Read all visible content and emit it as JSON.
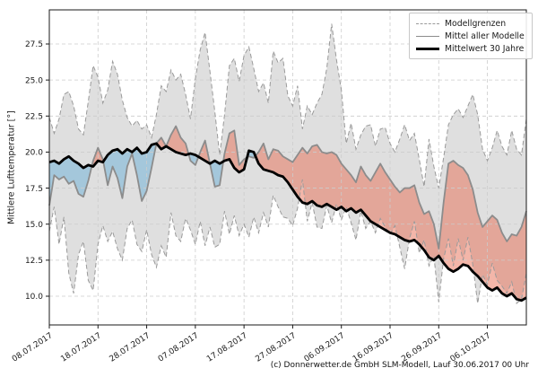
{
  "caption": "(c) Donnerwetter.de GmbH SLM-Modell, Lauf 30.06.2017 00 Uhr",
  "axes": {
    "ylabel": "Mittlere Lufttemperatur [°]",
    "ytick_values": [
      10.0,
      12.5,
      15.0,
      17.5,
      20.0,
      22.5,
      25.0,
      27.5
    ],
    "ytick_labels": [
      "10.0",
      "12.5",
      "15.0",
      "17.5",
      "20.0",
      "22.5",
      "25.0",
      "27.5"
    ],
    "xtick_days": [
      0,
      10,
      20,
      30,
      40,
      50,
      60,
      70,
      80,
      90
    ],
    "xtick_labels": [
      "08.07.2017",
      "18.07.2017",
      "28.07.2017",
      "07.08.2017",
      "17.08.2017",
      "27.08.2017",
      "06.09.2017",
      "16.09.2017",
      "26.09.2017",
      "06.10.2017"
    ]
  },
  "legend": {
    "items": [
      {
        "label": "Modellgrenzen",
        "style": "dashed"
      },
      {
        "label": "Mittel aller Modelle",
        "style": "solid"
      },
      {
        "label": "Mittelwert 30 Jahre",
        "style": "thick"
      }
    ]
  },
  "colors": {
    "band_fill": "#dfdfdf",
    "band_edge": "#9a9a9a",
    "warm_fill": "rgba(231,110,84,0.5)",
    "cool_fill": "rgba(128,184,216,0.62)",
    "mean_line": "#8c8c8c",
    "climate_line": "#000000",
    "grid": "#cccccc",
    "frame": "#1a1a1a",
    "tick_text": "#1a1a1a"
  },
  "chart_data": {
    "type": "line",
    "title": "",
    "xlabel": "",
    "ylabel": "Mittlere Lufttemperatur [°]",
    "ylim": [
      8.0,
      29.9
    ],
    "grid": true,
    "legend_position": "upper right",
    "start_date": "08.07.2017",
    "end_date": "14.10.2017",
    "days": 99,
    "series": [
      {
        "name": "Modellgrenzen (obere Grenze)",
        "style": "dashed-gray",
        "values": [
          22.4,
          21.3,
          22.3,
          24.0,
          24.2,
          23.2,
          21.6,
          21.2,
          23.5,
          26.0,
          25.2,
          23.4,
          24.3,
          26.3,
          25.4,
          23.6,
          22.4,
          21.8,
          22.2,
          21.6,
          21.9,
          21.0,
          22.6,
          24.6,
          24.2,
          25.7,
          25.0,
          25.4,
          24.0,
          22.3,
          25.1,
          27.1,
          28.3,
          25.6,
          22.8,
          19.8,
          22.6,
          26.0,
          26.5,
          24.9,
          26.7,
          27.3,
          25.8,
          24.2,
          24.8,
          23.4,
          27.0,
          26.2,
          26.5,
          23.9,
          23.2,
          24.6,
          21.6,
          23.2,
          22.6,
          23.4,
          24.0,
          25.8,
          28.9,
          26.4,
          24.3,
          20.6,
          22.0,
          20.2,
          21.2,
          21.8,
          21.9,
          20.4,
          21.6,
          21.7,
          20.6,
          20.0,
          20.9,
          21.9,
          20.8,
          21.3,
          19.5,
          17.6,
          20.9,
          19.0,
          17.5,
          19.6,
          21.9,
          22.6,
          23.0,
          22.4,
          23.2,
          24.0,
          22.6,
          20.2,
          19.4,
          20.3,
          21.5,
          20.4,
          19.8,
          21.5,
          20.2,
          19.8,
          22.3
        ]
      },
      {
        "name": "Modellgrenzen (untere Grenze)",
        "style": "dashed-gray",
        "values": [
          14.5,
          16.2,
          13.6,
          15.5,
          11.6,
          10.2,
          12.9,
          13.8,
          11.1,
          10.4,
          13.6,
          14.9,
          13.8,
          14.5,
          13.3,
          12.5,
          14.7,
          15.3,
          13.6,
          13.1,
          14.6,
          12.9,
          12.0,
          13.5,
          12.7,
          15.8,
          14.2,
          13.8,
          15.4,
          14.6,
          13.6,
          15.2,
          13.5,
          14.8,
          13.4,
          13.6,
          15.9,
          14.3,
          15.6,
          14.2,
          15.0,
          14.1,
          15.5,
          14.4,
          15.8,
          14.8,
          17.0,
          16.2,
          15.5,
          15.4,
          14.9,
          16.1,
          18.1,
          15.2,
          16.5,
          14.8,
          14.7,
          16.3,
          15.1,
          16.4,
          15.3,
          16.2,
          15.1,
          13.9,
          15.9,
          14.7,
          15.2,
          14.4,
          15.4,
          14.8,
          14.3,
          14.9,
          13.4,
          11.9,
          14.0,
          15.2,
          13.0,
          13.9,
          12.1,
          12.8,
          9.6,
          12.6,
          14.0,
          12.1,
          14.0,
          12.5,
          14.1,
          12.2,
          9.5,
          11.5,
          10.8,
          12.3,
          11.1,
          10.7,
          10.2,
          11.0,
          9.5,
          9.8,
          11.6
        ]
      },
      {
        "name": "Mittel aller Modelle",
        "style": "solid-gray",
        "values": [
          16.3,
          18.4,
          18.1,
          18.3,
          17.8,
          18.0,
          17.1,
          16.9,
          18.0,
          19.4,
          20.3,
          19.5,
          17.7,
          19.0,
          18.2,
          16.8,
          19.0,
          19.9,
          18.4,
          16.6,
          17.3,
          18.9,
          20.6,
          21.0,
          20.4,
          21.2,
          21.8,
          21.0,
          20.6,
          19.4,
          19.1,
          20.0,
          20.8,
          19.2,
          17.6,
          17.7,
          19.9,
          21.3,
          21.5,
          19.1,
          19.5,
          19.7,
          19.6,
          20.0,
          20.6,
          19.5,
          20.2,
          20.1,
          19.7,
          19.5,
          19.3,
          19.8,
          20.3,
          19.9,
          20.4,
          20.5,
          20.0,
          19.9,
          20.0,
          19.8,
          19.2,
          18.8,
          18.4,
          17.9,
          19.0,
          18.4,
          18.0,
          18.6,
          19.2,
          18.6,
          18.1,
          17.6,
          17.2,
          17.5,
          17.5,
          17.7,
          16.5,
          15.7,
          15.9,
          15.0,
          13.3,
          16.5,
          19.2,
          19.4,
          19.1,
          18.9,
          18.4,
          17.4,
          15.8,
          14.8,
          15.2,
          15.6,
          15.3,
          14.4,
          13.8,
          14.3,
          14.2,
          14.8,
          15.9
        ]
      },
      {
        "name": "Mittelwert 30 Jahre",
        "style": "thick-black",
        "values": [
          19.3,
          19.4,
          19.2,
          19.5,
          19.7,
          19.4,
          19.2,
          18.9,
          19.1,
          19.0,
          19.4,
          19.3,
          19.8,
          20.1,
          20.2,
          19.9,
          20.2,
          20.0,
          20.3,
          19.9,
          20.0,
          20.5,
          20.6,
          20.2,
          20.4,
          20.2,
          20.0,
          19.9,
          19.8,
          19.9,
          19.8,
          19.6,
          19.4,
          19.2,
          19.4,
          19.2,
          19.4,
          19.5,
          18.9,
          18.6,
          18.8,
          20.1,
          20.0,
          19.2,
          18.8,
          18.7,
          18.6,
          18.4,
          18.3,
          17.9,
          17.4,
          16.9,
          16.5,
          16.4,
          16.6,
          16.3,
          16.2,
          16.4,
          16.2,
          16.0,
          16.2,
          15.9,
          16.1,
          15.8,
          16.0,
          15.6,
          15.2,
          15.0,
          14.8,
          14.6,
          14.4,
          14.3,
          14.1,
          13.9,
          13.8,
          13.9,
          13.6,
          13.2,
          12.7,
          12.5,
          12.8,
          12.3,
          11.9,
          11.7,
          11.9,
          12.2,
          12.1,
          11.7,
          11.4,
          11.0,
          10.6,
          10.4,
          10.6,
          10.2,
          10.0,
          10.2,
          9.8,
          9.7,
          9.9
        ]
      }
    ],
    "fills": [
      {
        "name": "Modellgrenzen-Band",
        "between": [
          0,
          1
        ],
        "color": "#dfdfdf"
      },
      {
        "name": "Waermer als 30-Jahre-Mittel",
        "between": [
          2,
          3
        ],
        "where": "mean>climate",
        "color": "rgba(231,110,84,0.5)"
      },
      {
        "name": "Kaelter als 30-Jahre-Mittel",
        "between": [
          2,
          3
        ],
        "where": "mean<climate",
        "color": "rgba(128,184,216,0.62)"
      }
    ]
  }
}
